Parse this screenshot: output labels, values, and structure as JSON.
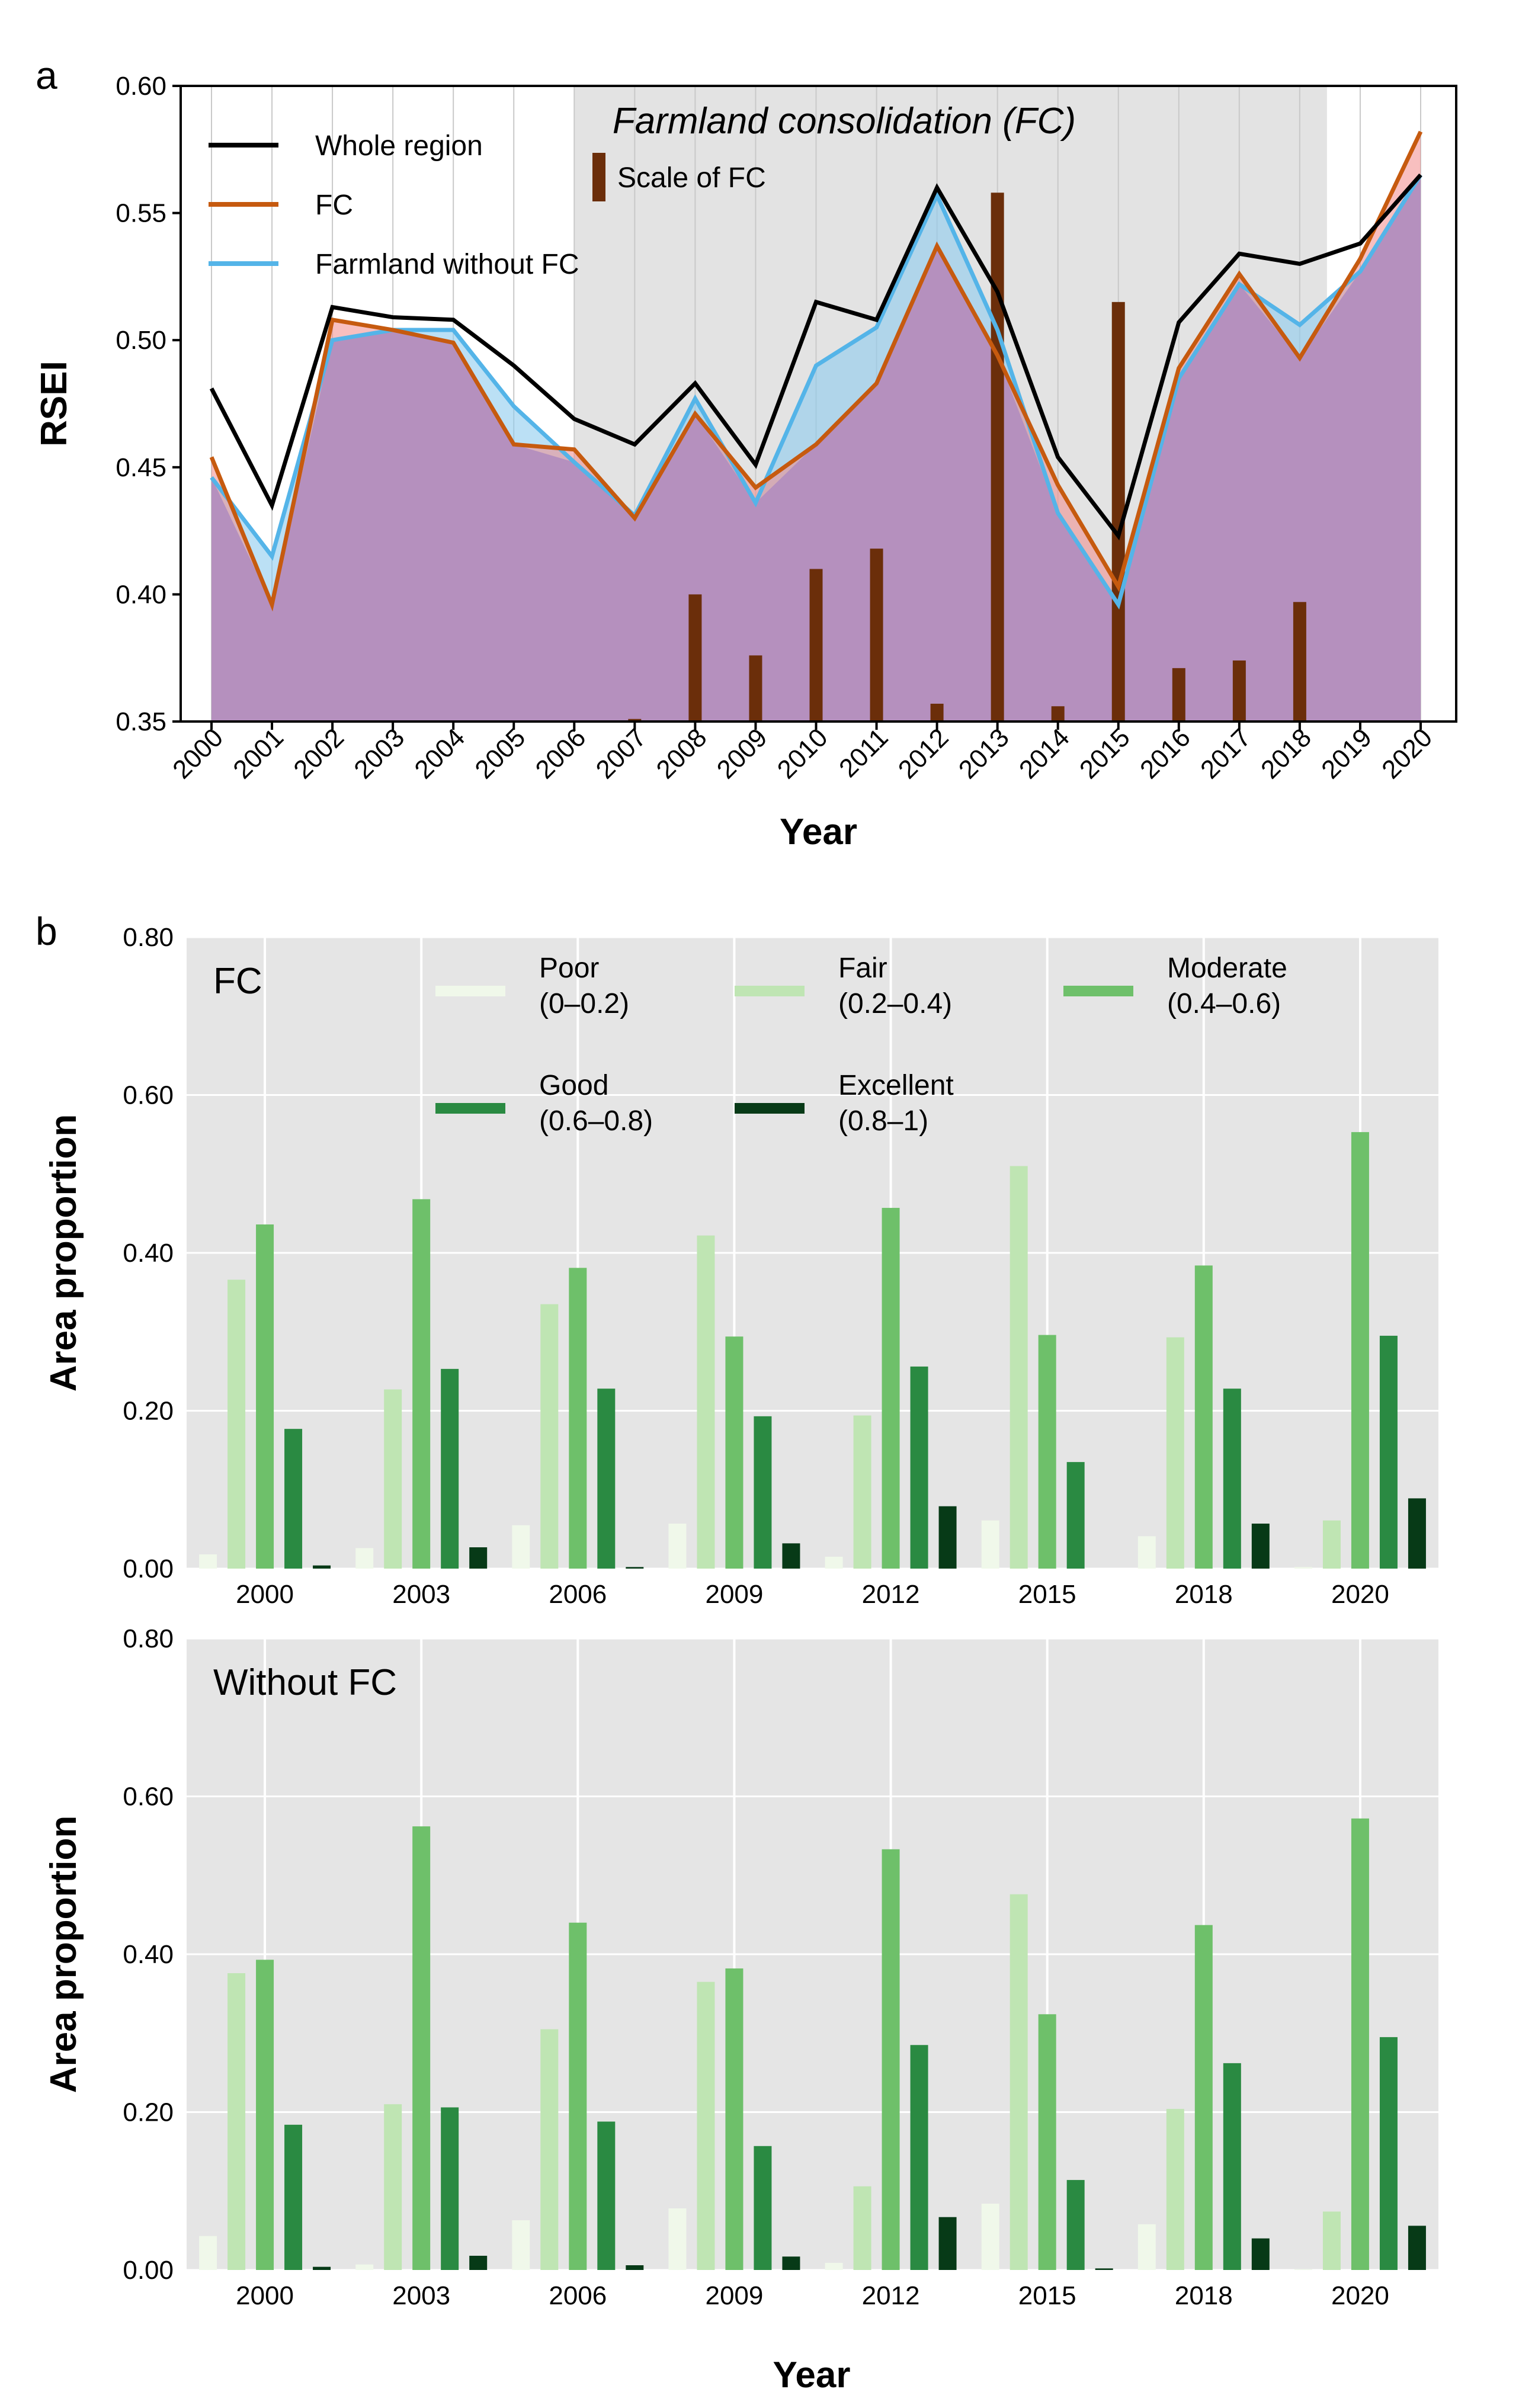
{
  "panel_a_label": "a",
  "panel_b_label": "b",
  "colors": {
    "whole_region": "#000000",
    "fc": "#c65a0f",
    "without_fc": "#54b4e8",
    "scale_bar": "#6b2e0a",
    "shade": "#e3e3e3",
    "poor": "#f0f8ea",
    "fair": "#bfe5b3",
    "moderate": "#6ec06a",
    "good": "#2a8a42",
    "excellent": "#073a17",
    "panel_bg": "#e5e5e5"
  },
  "chart_data": [
    {
      "type": "line",
      "panel": "a",
      "title": "Farmland consolidation (FC)",
      "xlabel": "Year",
      "ylabel": "RSEI",
      "ylim": [
        0.35,
        0.6
      ],
      "yticks": [
        "0.35",
        "0.40",
        "0.45",
        "0.50",
        "0.55",
        "0.60"
      ],
      "shaded_range": [
        2006,
        2018
      ],
      "x": [
        "2000",
        "2001",
        "2002",
        "2003",
        "2004",
        "2005",
        "2006",
        "2007",
        "2008",
        "2009",
        "2010",
        "2011",
        "2012",
        "2013",
        "2014",
        "2015",
        "2016",
        "2017",
        "2018",
        "2019",
        "2020"
      ],
      "series": [
        {
          "name": "Whole region",
          "values": [
            0.481,
            0.435,
            0.513,
            0.509,
            0.508,
            0.49,
            0.469,
            0.459,
            0.483,
            0.451,
            0.515,
            0.508,
            0.56,
            0.519,
            0.454,
            0.423,
            0.507,
            0.534,
            0.53,
            0.538,
            0.565
          ]
        },
        {
          "name": "FC",
          "values": [
            0.454,
            0.396,
            0.508,
            0.504,
            0.499,
            0.459,
            0.457,
            0.43,
            0.471,
            0.442,
            0.459,
            0.483,
            0.537,
            0.494,
            0.443,
            0.403,
            0.489,
            0.526,
            0.493,
            0.532,
            0.582
          ]
        },
        {
          "name": "Farmland without FC",
          "values": [
            0.446,
            0.415,
            0.5,
            0.504,
            0.504,
            0.474,
            0.452,
            0.431,
            0.477,
            0.436,
            0.49,
            0.505,
            0.557,
            0.504,
            0.432,
            0.396,
            0.485,
            0.522,
            0.506,
            0.527,
            0.565
          ]
        }
      ],
      "scale_of_fc": {
        "name": "Scale of FC",
        "x": [
          "2006",
          "2007",
          "2008",
          "2009",
          "2010",
          "2011",
          "2012",
          "2013",
          "2014",
          "2015",
          "2016",
          "2017",
          "2018"
        ],
        "values": [
          0.35,
          0.351,
          0.4,
          0.376,
          0.41,
          0.418,
          0.357,
          0.558,
          0.356,
          0.515,
          0.371,
          0.374,
          0.397
        ]
      }
    },
    {
      "type": "bar",
      "panel": "b-top",
      "title": "FC",
      "xlabel": "",
      "ylabel": "Area proportion",
      "ylim": [
        0,
        0.8
      ],
      "yticks": [
        "0.00",
        "0.20",
        "0.40",
        "0.60",
        "0.80"
      ],
      "categories": [
        "2000",
        "2003",
        "2006",
        "2009",
        "2012",
        "2015",
        "2018",
        "2020"
      ],
      "series": [
        {
          "name": "Poor",
          "range": "(0–0.2)",
          "values": [
            0.018,
            0.026,
            0.055,
            0.057,
            0.015,
            0.061,
            0.041,
            0.002
          ]
        },
        {
          "name": "Fair",
          "range": "(0.2–0.4)",
          "values": [
            0.366,
            0.227,
            0.335,
            0.422,
            0.194,
            0.51,
            0.293,
            0.061
          ]
        },
        {
          "name": "Moderate",
          "range": "(0.4–0.6)",
          "values": [
            0.436,
            0.468,
            0.381,
            0.294,
            0.457,
            0.296,
            0.384,
            0.553
          ]
        },
        {
          "name": "Good",
          "range": "(0.6–0.8)",
          "values": [
            0.177,
            0.253,
            0.228,
            0.193,
            0.256,
            0.135,
            0.228,
            0.295
          ]
        },
        {
          "name": "Excellent",
          "range": "(0.8–1)",
          "values": [
            0.004,
            0.027,
            0.002,
            0.032,
            0.079,
            0.0,
            0.057,
            0.089
          ]
        }
      ]
    },
    {
      "type": "bar",
      "panel": "b-bottom",
      "title": "Without FC",
      "xlabel": "Year",
      "ylabel": "Area proportion",
      "ylim": [
        0,
        0.8
      ],
      "yticks": [
        "0.00",
        "0.20",
        "0.40",
        "0.60",
        "0.80"
      ],
      "categories": [
        "2000",
        "2003",
        "2006",
        "2009",
        "2012",
        "2015",
        "2018",
        "2020"
      ],
      "series": [
        {
          "name": "Poor",
          "range": "(0–0.2)",
          "values": [
            0.043,
            0.007,
            0.063,
            0.078,
            0.009,
            0.084,
            0.058,
            0.001
          ]
        },
        {
          "name": "Fair",
          "range": "(0.2–0.4)",
          "values": [
            0.376,
            0.21,
            0.305,
            0.365,
            0.106,
            0.476,
            0.204,
            0.074
          ]
        },
        {
          "name": "Moderate",
          "range": "(0.4–0.6)",
          "values": [
            0.393,
            0.562,
            0.44,
            0.382,
            0.533,
            0.324,
            0.437,
            0.572
          ]
        },
        {
          "name": "Good",
          "range": "(0.6–0.8)",
          "values": [
            0.184,
            0.206,
            0.188,
            0.157,
            0.285,
            0.114,
            0.262,
            0.295
          ]
        },
        {
          "name": "Excellent",
          "range": "(0.8–1)",
          "values": [
            0.004,
            0.018,
            0.006,
            0.017,
            0.067,
            0.002,
            0.04,
            0.056
          ]
        }
      ]
    }
  ]
}
